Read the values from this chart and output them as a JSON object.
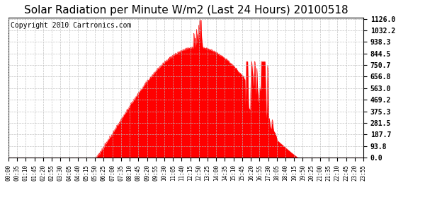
{
  "title": "Solar Radiation per Minute W/m2 (Last 24 Hours) 20100518",
  "copyright": "Copyright 2010 Cartronics.com",
  "yticks": [
    0.0,
    93.8,
    187.7,
    281.5,
    375.3,
    469.2,
    563.0,
    656.8,
    750.7,
    844.5,
    938.3,
    1032.2,
    1126.0
  ],
  "ymax": 1126.0,
  "ymin": 0.0,
  "fill_color": "#FF0000",
  "line_color": "#FF0000",
  "dashed_line_color": "#FF0000",
  "grid_color": "#BBBBBB",
  "background_color": "#FFFFFF",
  "plot_bg_color": "#FFFFFF",
  "title_fontsize": 11,
  "copyright_fontsize": 7,
  "xtick_labels": [
    "00:00",
    "00:35",
    "01:10",
    "01:45",
    "02:20",
    "02:55",
    "03:30",
    "04:05",
    "04:40",
    "05:15",
    "05:50",
    "06:25",
    "07:00",
    "07:35",
    "08:10",
    "08:45",
    "09:20",
    "09:55",
    "10:30",
    "11:05",
    "11:40",
    "12:15",
    "12:50",
    "13:25",
    "14:00",
    "14:35",
    "15:10",
    "15:45",
    "16:20",
    "16:55",
    "17:30",
    "18:05",
    "18:40",
    "19:15",
    "19:50",
    "20:25",
    "21:00",
    "21:35",
    "22:10",
    "22:45",
    "23:20",
    "23:55"
  ],
  "num_points": 1440,
  "sunrise_min": 355,
  "sunset_min": 1175,
  "peak_min": 775,
  "peak_val": 895
}
